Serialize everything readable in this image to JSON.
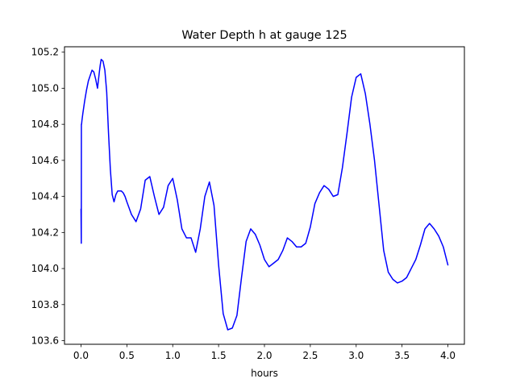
{
  "chart_data": {
    "type": "line",
    "title": "Water Depth h at gauge 125",
    "xlabel": "hours",
    "ylabel": "",
    "xlim": [
      -0.18,
      4.18
    ],
    "ylim": [
      103.58,
      105.23
    ],
    "grid": false,
    "x_ticks": [
      "0.0",
      "0.5",
      "1.0",
      "1.5",
      "2.0",
      "2.5",
      "3.0",
      "3.5",
      "4.0"
    ],
    "y_ticks": [
      "103.6",
      "103.8",
      "104.0",
      "104.2",
      "104.4",
      "104.6",
      "104.8",
      "105.0",
      "105.2"
    ],
    "x_tick_values": [
      0,
      0.5,
      1.0,
      1.5,
      2.0,
      2.5,
      3.0,
      3.5,
      4.0
    ],
    "y_tick_values": [
      103.6,
      103.8,
      104.0,
      104.2,
      104.4,
      104.6,
      104.8,
      105.0,
      105.2
    ],
    "series": [
      {
        "color": "#0000ff",
        "x": [
          0.0,
          0.003,
          0.004,
          0.006,
          0.008,
          0.01,
          0.02,
          0.04,
          0.06,
          0.08,
          0.1,
          0.12,
          0.14,
          0.16,
          0.18,
          0.2,
          0.21,
          0.22,
          0.24,
          0.26,
          0.28,
          0.3,
          0.32,
          0.34,
          0.36,
          0.38,
          0.4,
          0.42,
          0.44,
          0.46,
          0.48,
          0.5,
          0.55,
          0.6,
          0.65,
          0.7,
          0.75,
          0.8,
          0.85,
          0.9,
          0.95,
          1.0,
          1.05,
          1.1,
          1.15,
          1.2,
          1.25,
          1.3,
          1.35,
          1.4,
          1.45,
          1.5,
          1.55,
          1.6,
          1.65,
          1.7,
          1.75,
          1.8,
          1.85,
          1.9,
          1.95,
          2.0,
          2.05,
          2.1,
          2.15,
          2.2,
          2.25,
          2.3,
          2.35,
          2.4,
          2.45,
          2.5,
          2.55,
          2.6,
          2.65,
          2.7,
          2.75,
          2.8,
          2.85,
          2.9,
          2.95,
          3.0,
          3.05,
          3.1,
          3.15,
          3.2,
          3.25,
          3.3,
          3.35,
          3.4,
          3.45,
          3.5,
          3.55,
          3.6,
          3.65,
          3.7,
          3.75,
          3.8,
          3.85,
          3.9,
          3.95,
          4.0
        ],
        "values": [
          104.33,
          104.14,
          104.8,
          104.8,
          104.81,
          104.82,
          104.86,
          104.93,
          104.99,
          105.04,
          105.07,
          105.1,
          105.09,
          105.05,
          105.0,
          105.09,
          105.13,
          105.16,
          105.15,
          105.1,
          104.98,
          104.75,
          104.55,
          104.41,
          104.37,
          104.41,
          104.43,
          104.43,
          104.43,
          104.42,
          104.4,
          104.37,
          104.3,
          104.26,
          104.33,
          104.49,
          104.51,
          104.4,
          104.3,
          104.34,
          104.46,
          104.5,
          104.38,
          104.22,
          104.17,
          104.17,
          104.09,
          104.22,
          104.4,
          104.48,
          104.35,
          104.02,
          103.75,
          103.66,
          103.67,
          103.74,
          103.95,
          104.15,
          104.22,
          104.19,
          104.13,
          104.05,
          104.01,
          104.03,
          104.05,
          104.1,
          104.17,
          104.15,
          104.12,
          104.12,
          104.14,
          104.23,
          104.36,
          104.42,
          104.46,
          104.44,
          104.4,
          104.41,
          104.56,
          104.75,
          104.95,
          105.06,
          105.08,
          104.97,
          104.8,
          104.6,
          104.35,
          104.1,
          103.98,
          103.94,
          103.92,
          103.93,
          103.95,
          104.0,
          104.05,
          104.13,
          104.22,
          104.25,
          104.22,
          104.18,
          104.12,
          104.02
        ]
      }
    ]
  }
}
